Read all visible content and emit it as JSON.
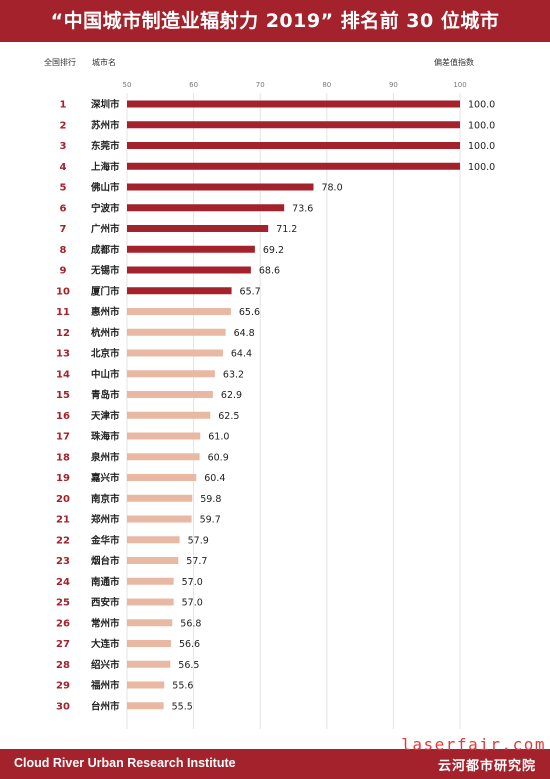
{
  "header": {
    "title": "“中国城市制造业辐射力 2019” 排名前 30 位城市"
  },
  "columns": {
    "rank": "全国排行",
    "city": "城市名",
    "value": "偏差值指数"
  },
  "footer": {
    "left": "Cloud River Urban Research Institute",
    "right": "云河都市研究院",
    "watermark": "laserfair.com"
  },
  "colors": {
    "brand": "#a3222b",
    "bar_top": "#a3222b",
    "bar_rest": "#e8b8a3"
  },
  "chart_data": {
    "type": "bar",
    "orientation": "horizontal",
    "xlim": [
      50,
      100
    ],
    "xticks": [
      50,
      60,
      70,
      80,
      90,
      100
    ],
    "highlight_top_n": 10,
    "ranks": [
      "1",
      "2",
      "3",
      "4",
      "5",
      "6",
      "7",
      "8",
      "9",
      "10",
      "11",
      "12",
      "13",
      "14",
      "15",
      "16",
      "17",
      "18",
      "19",
      "20",
      "21",
      "22",
      "23",
      "24",
      "25",
      "26",
      "27",
      "28",
      "29",
      "30"
    ],
    "categories": [
      "深圳市",
      "苏州市",
      "东莞市",
      "上海市",
      "佛山市",
      "宁波市",
      "广州市",
      "成都市",
      "无锡市",
      "厦门市",
      "惠州市",
      "杭州市",
      "北京市",
      "中山市",
      "青岛市",
      "天津市",
      "珠海市",
      "泉州市",
      "嘉兴市",
      "南京市",
      "郑州市",
      "金华市",
      "烟台市",
      "南通市",
      "西安市",
      "常州市",
      "大连市",
      "绍兴市",
      "福州市",
      "台州市"
    ],
    "values": [
      100.0,
      100.0,
      100.0,
      100.0,
      78.0,
      73.6,
      71.2,
      69.2,
      68.6,
      65.7,
      65.6,
      64.8,
      64.4,
      63.2,
      62.9,
      62.5,
      61.0,
      60.9,
      60.4,
      59.8,
      59.7,
      57.9,
      57.7,
      57.0,
      57.0,
      56.8,
      56.6,
      56.5,
      55.6,
      55.5
    ]
  }
}
